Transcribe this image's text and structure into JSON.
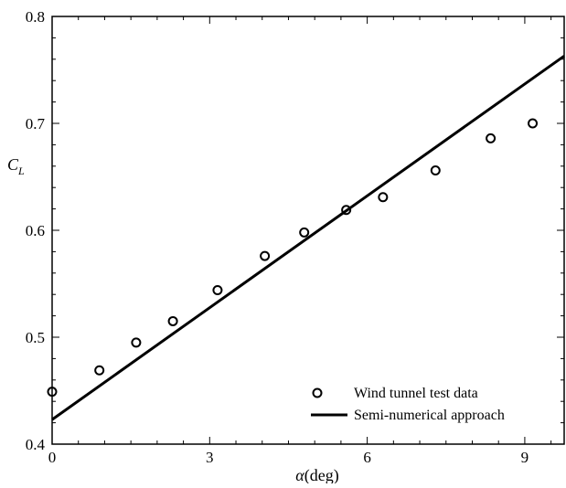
{
  "chart_data": {
    "type": "scatter",
    "xlabel_symbol": "α",
    "xlabel_unit": "(deg)",
    "ylabel_main": "C",
    "ylabel_sub": "L",
    "xlim": [
      0,
      9.75
    ],
    "ylim": [
      0.4,
      0.8
    ],
    "xticks": [
      0,
      3,
      6,
      9
    ],
    "xtick_labels": [
      "0",
      "3",
      "6",
      "9"
    ],
    "yticks": [
      0.4,
      0.5,
      0.6,
      0.7,
      0.8
    ],
    "ytick_labels": [
      "0.4",
      "0.5",
      "0.6",
      "0.7",
      "0.8"
    ],
    "grid": false,
    "legend_position": "bottom-right",
    "series": [
      {
        "name": "Wind tunnel test data",
        "kind": "markers",
        "marker": "open-circle",
        "color": "#000000",
        "x": [
          0.0,
          0.9,
          1.6,
          2.3,
          3.15,
          4.05,
          4.8,
          5.6,
          6.3,
          7.3,
          8.35,
          9.15
        ],
        "y": [
          0.449,
          0.469,
          0.495,
          0.515,
          0.544,
          0.576,
          0.598,
          0.619,
          0.631,
          0.656,
          0.686,
          0.7
        ]
      },
      {
        "name": "Semi-numerical approach",
        "kind": "line",
        "color": "#000000",
        "x": [
          0.0,
          9.75
        ],
        "y": [
          0.423,
          0.763
        ]
      }
    ]
  }
}
